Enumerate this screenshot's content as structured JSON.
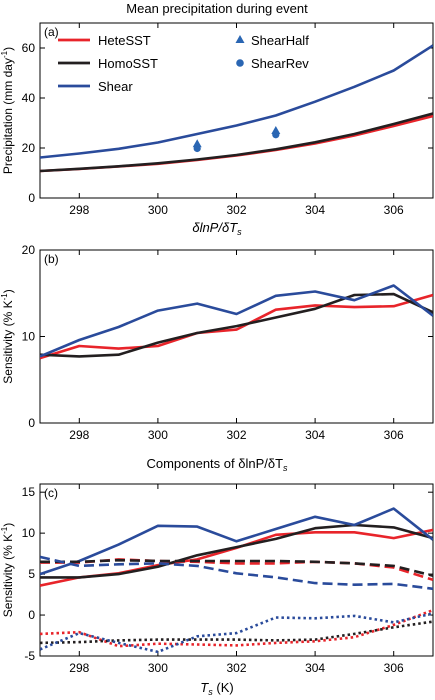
{
  "figure_title": "Mean precipitation during event",
  "subtitle_b": "δlnP/δT",
  "chart_data": [
    {
      "type": "line",
      "panel": "(a)",
      "title": "Mean precipitation during event",
      "xlabel": "δlnP/δT",
      "xlabel_sub": "s",
      "ylabel": "Precipitation (mm day",
      "ylabel_sup": "-1",
      "ylabel_close": ")",
      "xlim": [
        297,
        307
      ],
      "ylim": [
        0,
        70
      ],
      "xticks": [
        298,
        300,
        302,
        304,
        306
      ],
      "yticks": [
        0,
        20,
        40,
        60
      ],
      "legend": "top-left",
      "x": [
        297,
        298,
        299,
        300,
        301,
        302,
        303,
        304,
        305,
        306,
        307
      ],
      "series": [
        {
          "name": "HeteSST",
          "color": "#e8242a",
          "dash": "solid",
          "values": [
            10.8,
            11.6,
            12.6,
            13.7,
            15.2,
            17.0,
            19.2,
            21.8,
            25.0,
            28.8,
            32.8
          ]
        },
        {
          "name": "HomoSST",
          "color": "#231f20",
          "dash": "solid",
          "values": [
            10.8,
            11.7,
            12.7,
            13.9,
            15.4,
            17.2,
            19.5,
            22.3,
            25.6,
            29.6,
            33.8
          ]
        },
        {
          "name": "Shear",
          "color": "#2a4b9b",
          "dash": "solid",
          "values": [
            16.2,
            17.8,
            19.7,
            22.2,
            25.6,
            29.0,
            33.0,
            38.5,
            44.5,
            51.0,
            61.0
          ]
        }
      ],
      "markers": [
        {
          "name": "ShearHalf",
          "shape": "triangle",
          "color": "#2a66b3",
          "points": [
            [
              301,
              21.5
            ],
            [
              303,
              26.8
            ]
          ]
        },
        {
          "name": "ShearRev",
          "shape": "circle",
          "color": "#2a66b3",
          "points": [
            [
              301,
              19.8
            ],
            [
              303,
              25.3
            ]
          ]
        }
      ]
    },
    {
      "type": "line",
      "panel": "(b)",
      "xlabel": "",
      "ylabel": "Sensitivity (% K",
      "ylabel_sup": "-1",
      "ylabel_close": ")",
      "xlim": [
        297,
        307
      ],
      "ylim": [
        0,
        20
      ],
      "xticks": [
        298,
        300,
        302,
        304,
        306
      ],
      "yticks": [
        0,
        10,
        20
      ],
      "x": [
        297,
        298,
        299,
        300,
        301,
        302,
        303,
        304,
        305,
        306,
        307
      ],
      "series": [
        {
          "color": "#e8242a",
          "dash": "solid",
          "values": [
            7.5,
            8.9,
            8.6,
            8.9,
            10.4,
            10.8,
            13.1,
            13.6,
            13.4,
            13.5,
            14.8
          ]
        },
        {
          "color": "#231f20",
          "dash": "solid",
          "values": [
            7.9,
            7.7,
            7.9,
            9.3,
            10.4,
            11.2,
            12.2,
            13.2,
            14.8,
            14.9,
            12.8
          ]
        },
        {
          "color": "#2a4b9b",
          "dash": "solid",
          "values": [
            7.7,
            9.6,
            11.1,
            13.0,
            13.8,
            12.6,
            14.7,
            15.2,
            14.2,
            15.9,
            12.4
          ]
        }
      ]
    },
    {
      "type": "line",
      "panel": "(c)",
      "title": "Components of δlnP/δT",
      "title_sub": "s",
      "xlabel": "T",
      "xlabel_sub": "s",
      "xlabel_unit": "(K)",
      "ylabel": "Sensitivity (% K",
      "ylabel_sup": "-1",
      "ylabel_close": ")",
      "xlim": [
        297,
        307
      ],
      "ylim": [
        -5,
        16
      ],
      "xticks": [
        298,
        300,
        302,
        304,
        306
      ],
      "yticks": [
        -5,
        0,
        5,
        10,
        15
      ],
      "x": [
        297,
        298,
        299,
        300,
        301,
        302,
        303,
        304,
        305,
        306,
        307
      ],
      "series": [
        {
          "color": "#e8242a",
          "dash": "solid",
          "values": [
            3.6,
            4.6,
            5.1,
            6.1,
            6.8,
            8.2,
            9.8,
            10.1,
            10.1,
            9.4,
            10.4
          ]
        },
        {
          "color": "#231f20",
          "dash": "solid",
          "values": [
            4.6,
            4.6,
            5.0,
            5.9,
            7.3,
            8.3,
            9.3,
            10.6,
            11.0,
            10.7,
            9.4
          ]
        },
        {
          "color": "#2a4b9b",
          "dash": "solid",
          "values": [
            5.0,
            6.6,
            8.6,
            10.9,
            10.8,
            9.0,
            10.5,
            12.0,
            11.0,
            13.0,
            9.2
          ]
        },
        {
          "color": "#e8242a",
          "dash": "dashed",
          "values": [
            6.4,
            6.4,
            6.8,
            6.6,
            6.5,
            6.3,
            6.3,
            6.5,
            6.3,
            5.8,
            4.3
          ]
        },
        {
          "color": "#231f20",
          "dash": "dashed",
          "values": [
            6.5,
            6.5,
            6.7,
            6.6,
            6.6,
            6.6,
            6.6,
            6.5,
            6.3,
            6.0,
            4.8
          ]
        },
        {
          "color": "#2a4b9b",
          "dash": "dashed",
          "values": [
            7.1,
            6.0,
            6.2,
            6.3,
            6.0,
            5.1,
            4.6,
            3.9,
            3.7,
            3.8,
            3.2
          ]
        },
        {
          "color": "#e8242a",
          "dash": "dotted",
          "values": [
            -2.3,
            -2.1,
            -3.8,
            -3.5,
            -3.6,
            -3.7,
            -3.4,
            -3.2,
            -2.7,
            -1.2,
            0.6
          ]
        },
        {
          "color": "#231f20",
          "dash": "dotted",
          "values": [
            -3.4,
            -3.3,
            -3.1,
            -3.0,
            -3.0,
            -3.0,
            -3.1,
            -3.0,
            -2.3,
            -1.5,
            -0.8
          ]
        },
        {
          "color": "#2a4b9b",
          "dash": "dotted",
          "values": [
            -4.2,
            -2.2,
            -3.4,
            -4.5,
            -2.6,
            -2.2,
            -0.3,
            -0.4,
            -0.1,
            -0.9,
            0.2
          ]
        }
      ]
    }
  ]
}
